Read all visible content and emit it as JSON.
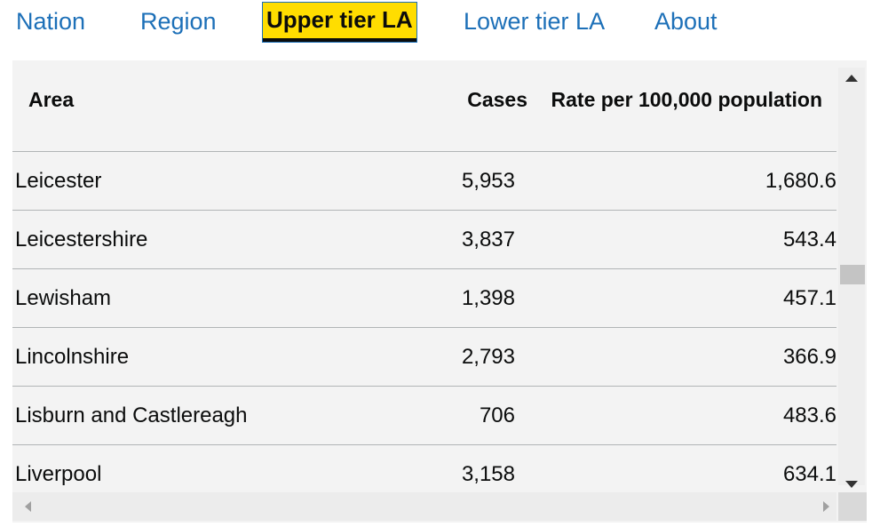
{
  "tabs": [
    {
      "label": "Nation",
      "selected": false
    },
    {
      "label": "Region",
      "selected": false
    },
    {
      "label": "Upper tier LA",
      "selected": true
    },
    {
      "label": "Lower tier LA",
      "selected": false
    },
    {
      "label": "About",
      "selected": false
    }
  ],
  "colors": {
    "link": "#1d70b8",
    "selected_tab_bg": "#ffdd00",
    "panel_bg": "#f3f3f3",
    "text": "#0b0c0c"
  },
  "table": {
    "headers": {
      "area": "Area",
      "cases": "Cases",
      "rate": "Rate per 100,000 population"
    },
    "rows": [
      {
        "area": "Leicester",
        "cases": "5,953",
        "rate": "1,680.6"
      },
      {
        "area": "Leicestershire",
        "cases": "3,837",
        "rate": "543.4"
      },
      {
        "area": "Lewisham",
        "cases": "1,398",
        "rate": "457.1"
      },
      {
        "area": "Lincolnshire",
        "cases": "2,793",
        "rate": "366.9"
      },
      {
        "area": "Lisburn and Castlereagh",
        "cases": "706",
        "rate": "483.6"
      },
      {
        "area": "Liverpool",
        "cases": "3,158",
        "rate": "634.1"
      }
    ]
  },
  "icons": {
    "scroll_up": "triangle-up-icon",
    "scroll_down": "triangle-down-icon",
    "scroll_left": "triangle-left-icon",
    "scroll_right": "triangle-right-icon"
  }
}
